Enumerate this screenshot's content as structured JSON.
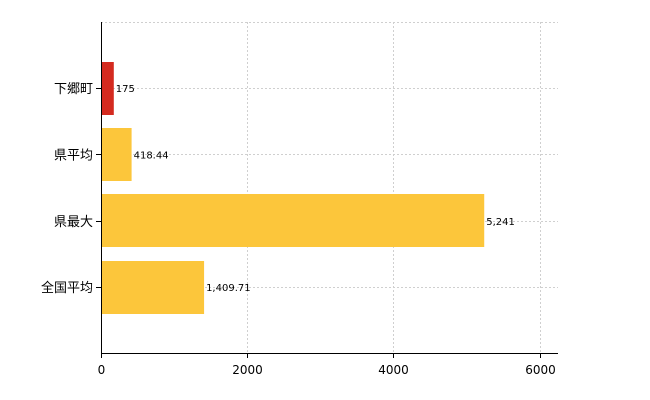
{
  "chart_data": {
    "type": "bar",
    "orientation": "horizontal",
    "categories": [
      "下郷町",
      "県平均",
      "県最大",
      "全国平均"
    ],
    "values": [
      175,
      418.44,
      5241,
      1409.71
    ],
    "value_labels": [
      "175",
      "418.44",
      "5,241",
      "1,409.71"
    ],
    "bar_colors": [
      "#d42a1f",
      "#fcc63b",
      "#fcc63b",
      "#fcc63b"
    ],
    "xlim": [
      0,
      6250
    ],
    "x_ticks": [
      0,
      2000,
      4000,
      6000
    ],
    "x_tick_labels": [
      "0",
      "2000",
      "4000",
      "6000"
    ],
    "grid": true,
    "legend": false
  }
}
